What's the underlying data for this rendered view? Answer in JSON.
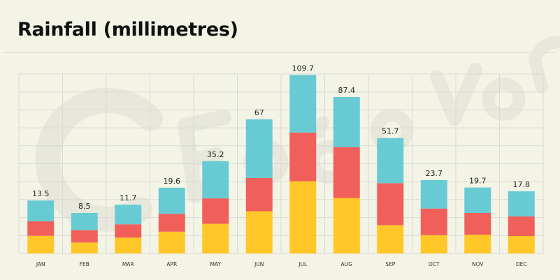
{
  "title": "Rainfall (millimetres)",
  "watermark": "Fotoever",
  "chart_data": {
    "type": "bar",
    "stacked": true,
    "title": "Rainfall (millimetres)",
    "xlabel": "",
    "ylabel": "",
    "grid": true,
    "y_scale_note_visible": false,
    "categories": [
      "JAN",
      "FEB",
      "MAR",
      "APR",
      "MAY",
      "JUN",
      "JUL",
      "AUG",
      "SEP",
      "OCT",
      "NOV",
      "DEC"
    ],
    "totals": [
      13.5,
      8.5,
      11.7,
      19.6,
      35.2,
      67,
      109.7,
      87.4,
      51.7,
      23.7,
      19.7,
      17.8
    ],
    "total_labels": [
      "13.5",
      "8.5",
      "11.7",
      "19.6",
      "35.2",
      "67",
      "109.7",
      "87.4",
      "51.7",
      "23.7",
      "19.7",
      "17.8"
    ],
    "series": [
      {
        "color": "#ffc727",
        "values": [
          4.5,
          2.3,
          3.8,
          6.5,
          11.3,
          21.1,
          44.4,
          31.0,
          12.7,
          5.9,
          5.6,
          5.0
        ]
      },
      {
        "color": "#f15f5b",
        "values": [
          3.7,
          2.6,
          3.2,
          5.3,
          9.7,
          16.6,
          29.9,
          28.4,
          18.8,
          8.6,
          6.5,
          5.6
        ]
      },
      {
        "color": "#68cbd3",
        "values": [
          5.3,
          3.6,
          4.7,
          7.8,
          14.2,
          29.3,
          35.4,
          28.0,
          20.2,
          9.2,
          7.6,
          7.2
        ]
      }
    ]
  }
}
